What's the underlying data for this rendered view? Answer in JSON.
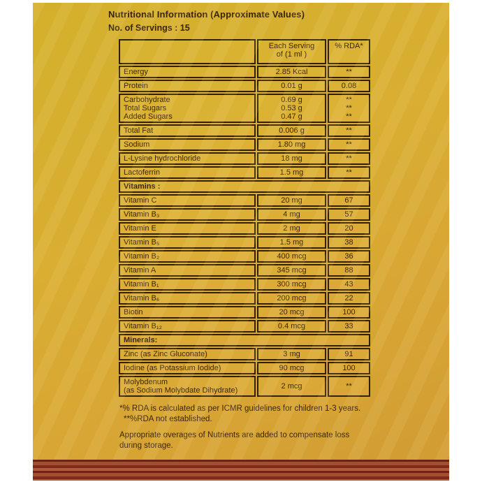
{
  "label": {
    "title": "Nutritional Information (Approximate Values)",
    "servings_line": "No. of Servings : 15",
    "columns": {
      "serving_line1": "Each Serving",
      "serving_line2": "of  (1 ml )",
      "rda": "% RDA*"
    },
    "rows": [
      {
        "type": "data",
        "name": [
          "Energy"
        ],
        "serving": [
          "2.85 Kcal"
        ],
        "rda": [
          "**"
        ]
      },
      {
        "type": "data",
        "name": [
          "Protein"
        ],
        "serving": [
          "0.01 g"
        ],
        "rda": [
          "0.08"
        ]
      },
      {
        "type": "data",
        "name": [
          "Carbohydrate",
          "Total Sugars",
          "Added Sugars"
        ],
        "serving": [
          "0.69 g",
          "0.53 g",
          "0.47 g"
        ],
        "rda": [
          "**",
          "**",
          "**"
        ]
      },
      {
        "type": "data",
        "name": [
          "Total Fat"
        ],
        "serving": [
          "0.006 g"
        ],
        "rda": [
          "**"
        ]
      },
      {
        "type": "data",
        "name": [
          "Sodium"
        ],
        "serving": [
          "1.80 mg"
        ],
        "rda": [
          "**"
        ]
      },
      {
        "type": "data",
        "name": [
          "L-Lysine hydrochloride"
        ],
        "serving": [
          "18 mg"
        ],
        "rda": [
          "**"
        ]
      },
      {
        "type": "data",
        "name": [
          "Lactoferrin"
        ],
        "serving": [
          "1.5 mg"
        ],
        "rda": [
          "**"
        ]
      },
      {
        "type": "section",
        "label": "Vitamins :"
      },
      {
        "type": "data",
        "name": [
          "Vitamin C"
        ],
        "serving": [
          "20 mg"
        ],
        "rda": [
          "67"
        ]
      },
      {
        "type": "data",
        "name": [
          "Vitamin B₃"
        ],
        "serving": [
          "4 mg"
        ],
        "rda": [
          "57"
        ]
      },
      {
        "type": "data",
        "name": [
          "Vitamin E"
        ],
        "serving": [
          "2 mg"
        ],
        "rda": [
          "20"
        ]
      },
      {
        "type": "data",
        "name": [
          "Vitamin B₅"
        ],
        "serving": [
          "1.5 mg"
        ],
        "rda": [
          "38"
        ]
      },
      {
        "type": "data",
        "name": [
          "Vitamin B₂"
        ],
        "serving": [
          "400 mcg"
        ],
        "rda": [
          "36"
        ]
      },
      {
        "type": "data",
        "name": [
          "Vitamin A"
        ],
        "serving": [
          "345 mcg"
        ],
        "rda": [
          "88"
        ]
      },
      {
        "type": "data",
        "name": [
          "Vitamin B₁"
        ],
        "serving": [
          "300 mcg"
        ],
        "rda": [
          "43"
        ]
      },
      {
        "type": "data",
        "name": [
          "Vitamin B₆"
        ],
        "serving": [
          "200 mcg"
        ],
        "rda": [
          "22"
        ]
      },
      {
        "type": "data",
        "name": [
          "Biotin"
        ],
        "serving": [
          "20 mcg"
        ],
        "rda": [
          "100"
        ]
      },
      {
        "type": "data",
        "name": [
          "Vitamin B₁₂"
        ],
        "serving": [
          "0.4 mcg"
        ],
        "rda": [
          "33"
        ]
      },
      {
        "type": "section",
        "label": "Minerals:"
      },
      {
        "type": "data",
        "name": [
          "Zinc  (as Zinc Gluconate)"
        ],
        "serving": [
          "3 mg"
        ],
        "rda": [
          "91"
        ]
      },
      {
        "type": "data",
        "name": [
          "Iodine (as Potassium Iodide)"
        ],
        "serving": [
          "90 mcg"
        ],
        "rda": [
          "100"
        ]
      },
      {
        "type": "data",
        "name": [
          "Molybdenum",
          "(as Sodium Molybdate Dihydrate)"
        ],
        "serving": [
          "2 mcg"
        ],
        "rda": [
          "**"
        ]
      }
    ],
    "footnotes": {
      "rda_note": "*% RDA is calculated as per ICMR guidelines for children 1-3 years.",
      "rda_na_note": "**%RDA not established.",
      "overage_note": "Appropriate overages of Nutrients are added to compensate loss during storage."
    },
    "colors": {
      "background_yellow": "#d8ab32",
      "stripe_dark": "#7c2a17",
      "stripe_light": "#ad5639",
      "border_brown": "#33200a",
      "text_brown": "#3a2408"
    }
  }
}
